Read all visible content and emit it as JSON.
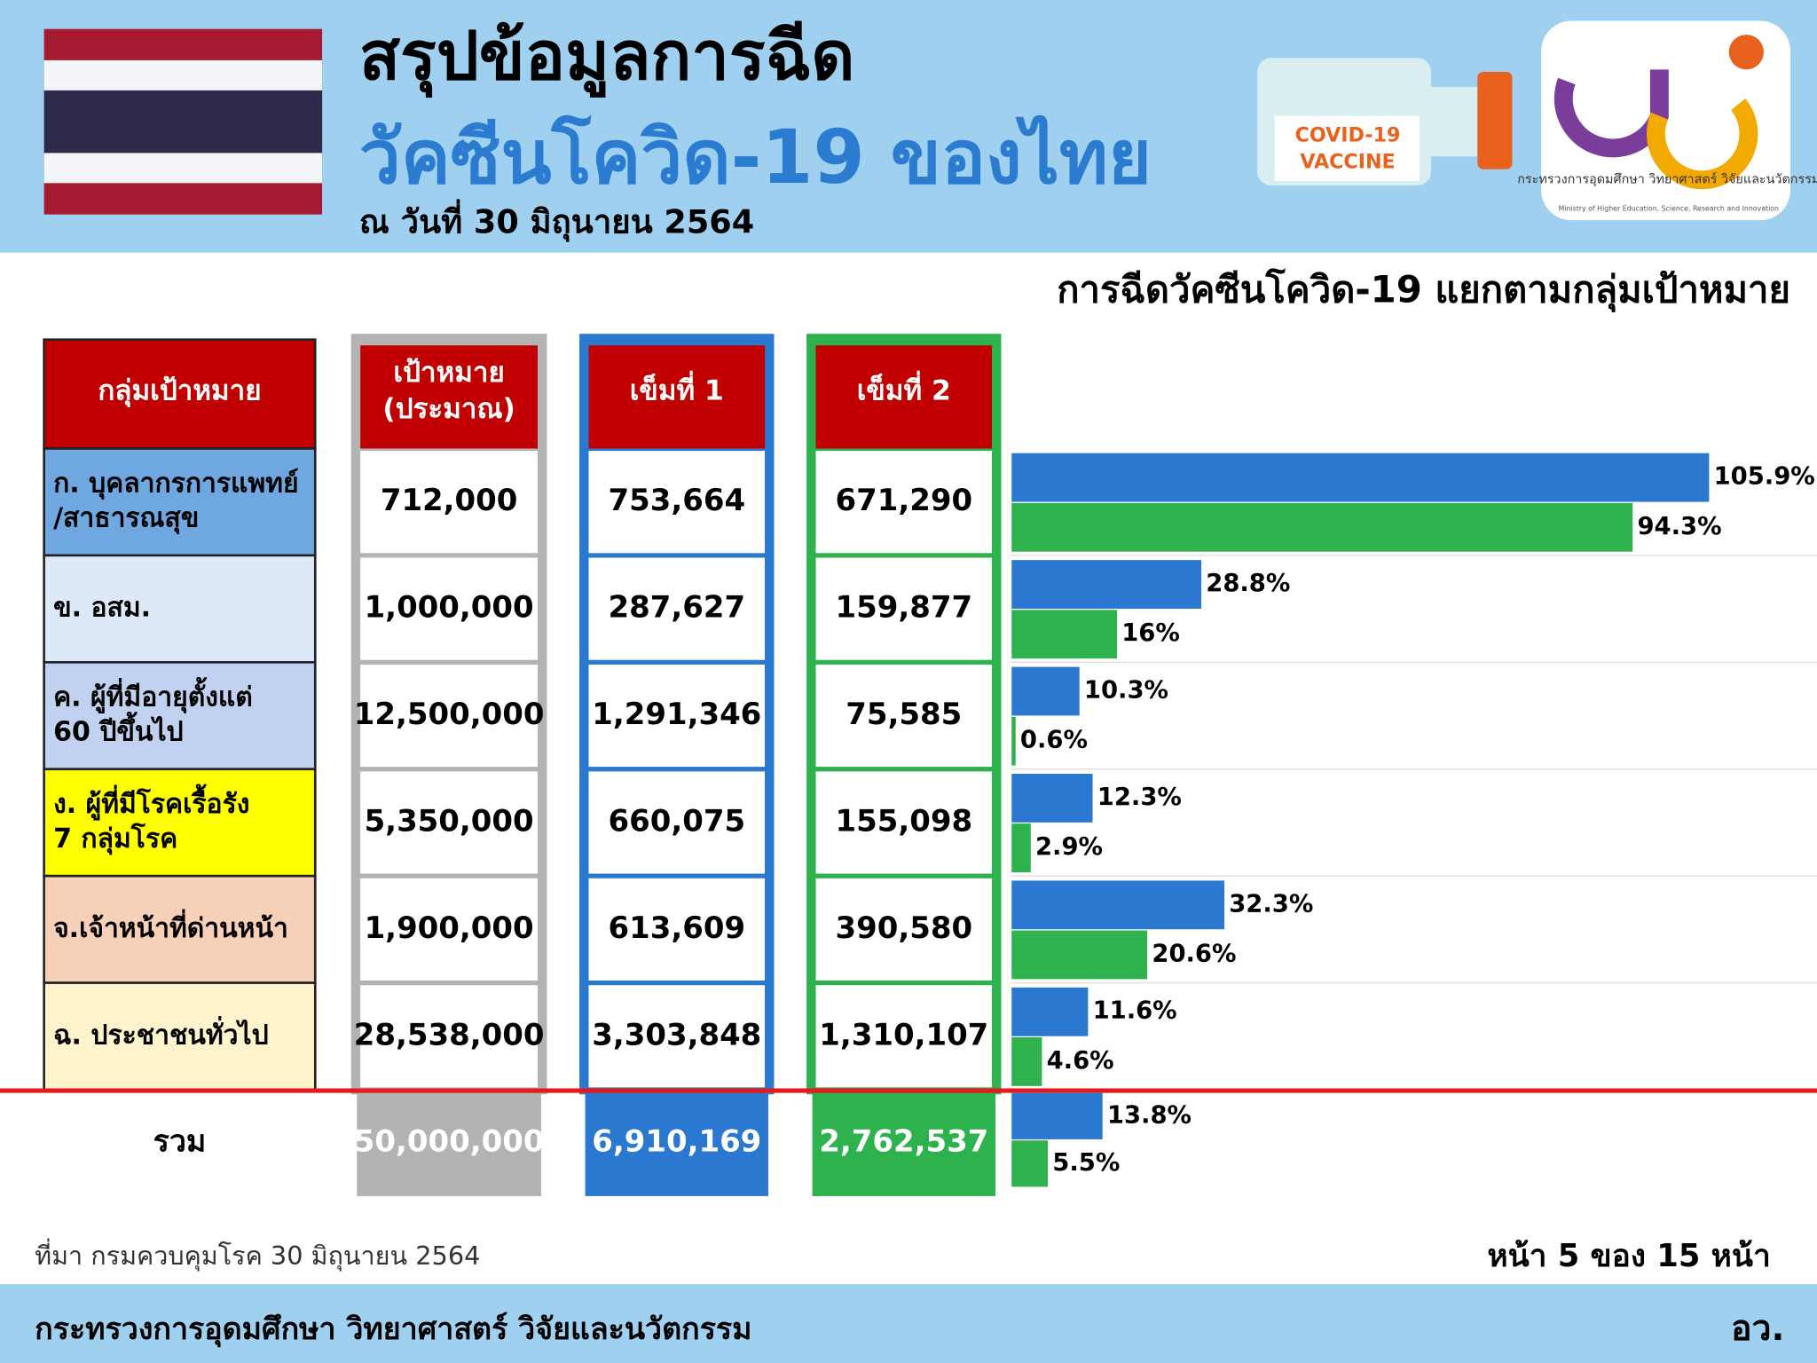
{
  "header": {
    "title_line1": "สรุปข้อมูลการฉีด",
    "title_line2": "วัคซีนโควิด-19 ของไทย",
    "date": "ณ วันที่ 30 มิถุนายน 2564",
    "vaccine_label": [
      "COVID-19",
      "VACCINE"
    ],
    "logo_text": "กระทรวงการอุดมศึกษา วิทยาศาสตร์ วิจัยและนวัตกรรม",
    "logo_subtext": "Ministry of Higher Education, Science, Research and Innovation"
  },
  "table": {
    "columns": [
      [
        "กลุ่มเป้าหมาย"
      ],
      [
        "เป้าหมาย",
        "(ประมาณ)"
      ],
      [
        "เข็มที่ 1"
      ],
      [
        "เข็มที่ 2"
      ]
    ],
    "rows": [
      {
        "group": [
          "ก. บุคลากรการแพทย์",
          "/สาธารณสุข"
        ],
        "cells": [
          "712,000",
          "753,664",
          "671,290"
        ]
      },
      {
        "group": [
          "ข. อสม."
        ],
        "cells": [
          "1,000,000",
          "287,627",
          "159,877"
        ]
      },
      {
        "group": [
          "ค. ผู้ที่มีอายุตั้งแต่",
          "60 ปีขึ้นไป"
        ],
        "cells": [
          "12,500,000",
          "1,291,346",
          "75,585"
        ]
      },
      {
        "group": [
          "ง. ผู้ที่มีโรคเรื้อรัง",
          "7 กลุ่มโรค"
        ],
        "cells": [
          "5,350,000",
          "660,075",
          "155,098"
        ]
      },
      {
        "group": [
          "จ.เจ้าหน้าที่ด่านหน้า"
        ],
        "cells": [
          "1,900,000",
          "613,609",
          "390,580"
        ]
      },
      {
        "group": [
          "ฉ. ประชาชนทั่วไป"
        ],
        "cells": [
          "28,538,000",
          "3,303,848",
          "1,310,107"
        ]
      }
    ],
    "total": {
      "group": [
        "รวม"
      ],
      "cells": [
        "50,000,000",
        "6,910,169",
        "2,762,537"
      ]
    }
  },
  "chart_data": {
    "type": "bar",
    "orientation": "horizontal",
    "title": "การฉีดวัคซีนโควิด-19 แยกตามกลุ่มเป้าหมาย",
    "categories": [
      null,
      null,
      null,
      null,
      null,
      null,
      null
    ],
    "xlim": [
      0,
      120
    ],
    "series": [
      {
        "color": "#2b78d0",
        "values": [
          105.9,
          28.8,
          10.3,
          12.3,
          32.3,
          11.6,
          13.8
        ],
        "value_labels": [
          "105.9%",
          "28.8%",
          "10.3%",
          "12.3%",
          "32.3%",
          "11.6%",
          "13.8%"
        ]
      },
      {
        "color": "#2db24e",
        "values": [
          94.3,
          16,
          0.6,
          2.9,
          20.6,
          4.6,
          5.5
        ],
        "value_labels": [
          "94.3%",
          "16%",
          "0.6%",
          "2.9%",
          "20.6%",
          "4.6%",
          "5.5%"
        ]
      }
    ]
  },
  "footer": {
    "source": "ที่มา กรมควบคุมโรค 30 มิถุนายน 2564",
    "page": "หน้า 5 ของ 15 หน้า",
    "ministry": "กระทรวงการอุดมศึกษา วิทยาศาสตร์ วิจัยและนวัตกรรม",
    "abbr": "อว."
  }
}
